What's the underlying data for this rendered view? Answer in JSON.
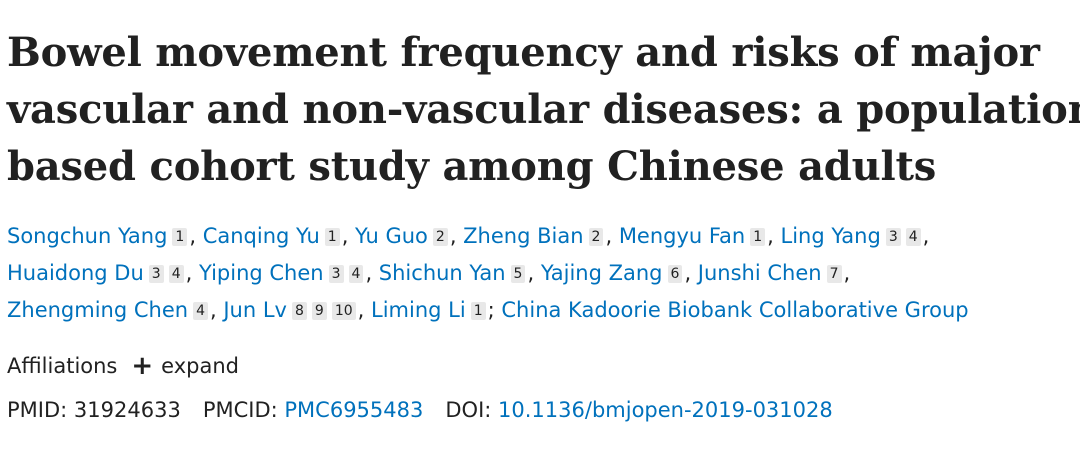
{
  "title_lines": [
    "Bowel movement frequency and risks of major",
    "vascular and non-vascular diseases: a population-",
    "based cohort study among Chinese adults"
  ],
  "authors": [
    {
      "name": "Songchun Yang",
      "affils": [
        "1"
      ]
    },
    {
      "name": "Canqing Yu",
      "affils": [
        "1"
      ]
    },
    {
      "name": "Yu Guo",
      "affils": [
        "2"
      ]
    },
    {
      "name": "Zheng Bian",
      "affils": [
        "2"
      ]
    },
    {
      "name": "Mengyu Fan",
      "affils": [
        "1"
      ]
    },
    {
      "name": "Ling Yang",
      "affils": [
        "3",
        "4"
      ]
    },
    {
      "name": "Huaidong Du",
      "affils": [
        "3",
        "4"
      ]
    },
    {
      "name": "Yiping Chen",
      "affils": [
        "3",
        "4"
      ]
    },
    {
      "name": "Shichun Yan",
      "affils": [
        "5"
      ]
    },
    {
      "name": "Yajing Zang",
      "affils": [
        "6"
      ]
    },
    {
      "name": "Junshi Chen",
      "affils": [
        "7"
      ]
    },
    {
      "name": "Zhengming Chen",
      "affils": [
        "4"
      ]
    },
    {
      "name": "Jun Lv",
      "affils": [
        "8",
        "9",
        "10"
      ]
    },
    {
      "name": "Liming Li",
      "affils": [
        "1"
      ]
    }
  ],
  "collaborative_group": "China Kadoorie Biobank Collaborative Group",
  "affiliations": {
    "label": "Affiliations",
    "expand_label": "expand"
  },
  "ids": {
    "pmid_label": "PMID:",
    "pmid": "31924633",
    "pmcid_label": "PMCID:",
    "pmcid": "PMC6955483",
    "doi_label": "DOI:",
    "doi": "10.1136/bmjopen-2019-031028"
  },
  "colors": {
    "link": "#0071bc",
    "text": "#212121",
    "superscript_bg": "#e8e8e8"
  }
}
